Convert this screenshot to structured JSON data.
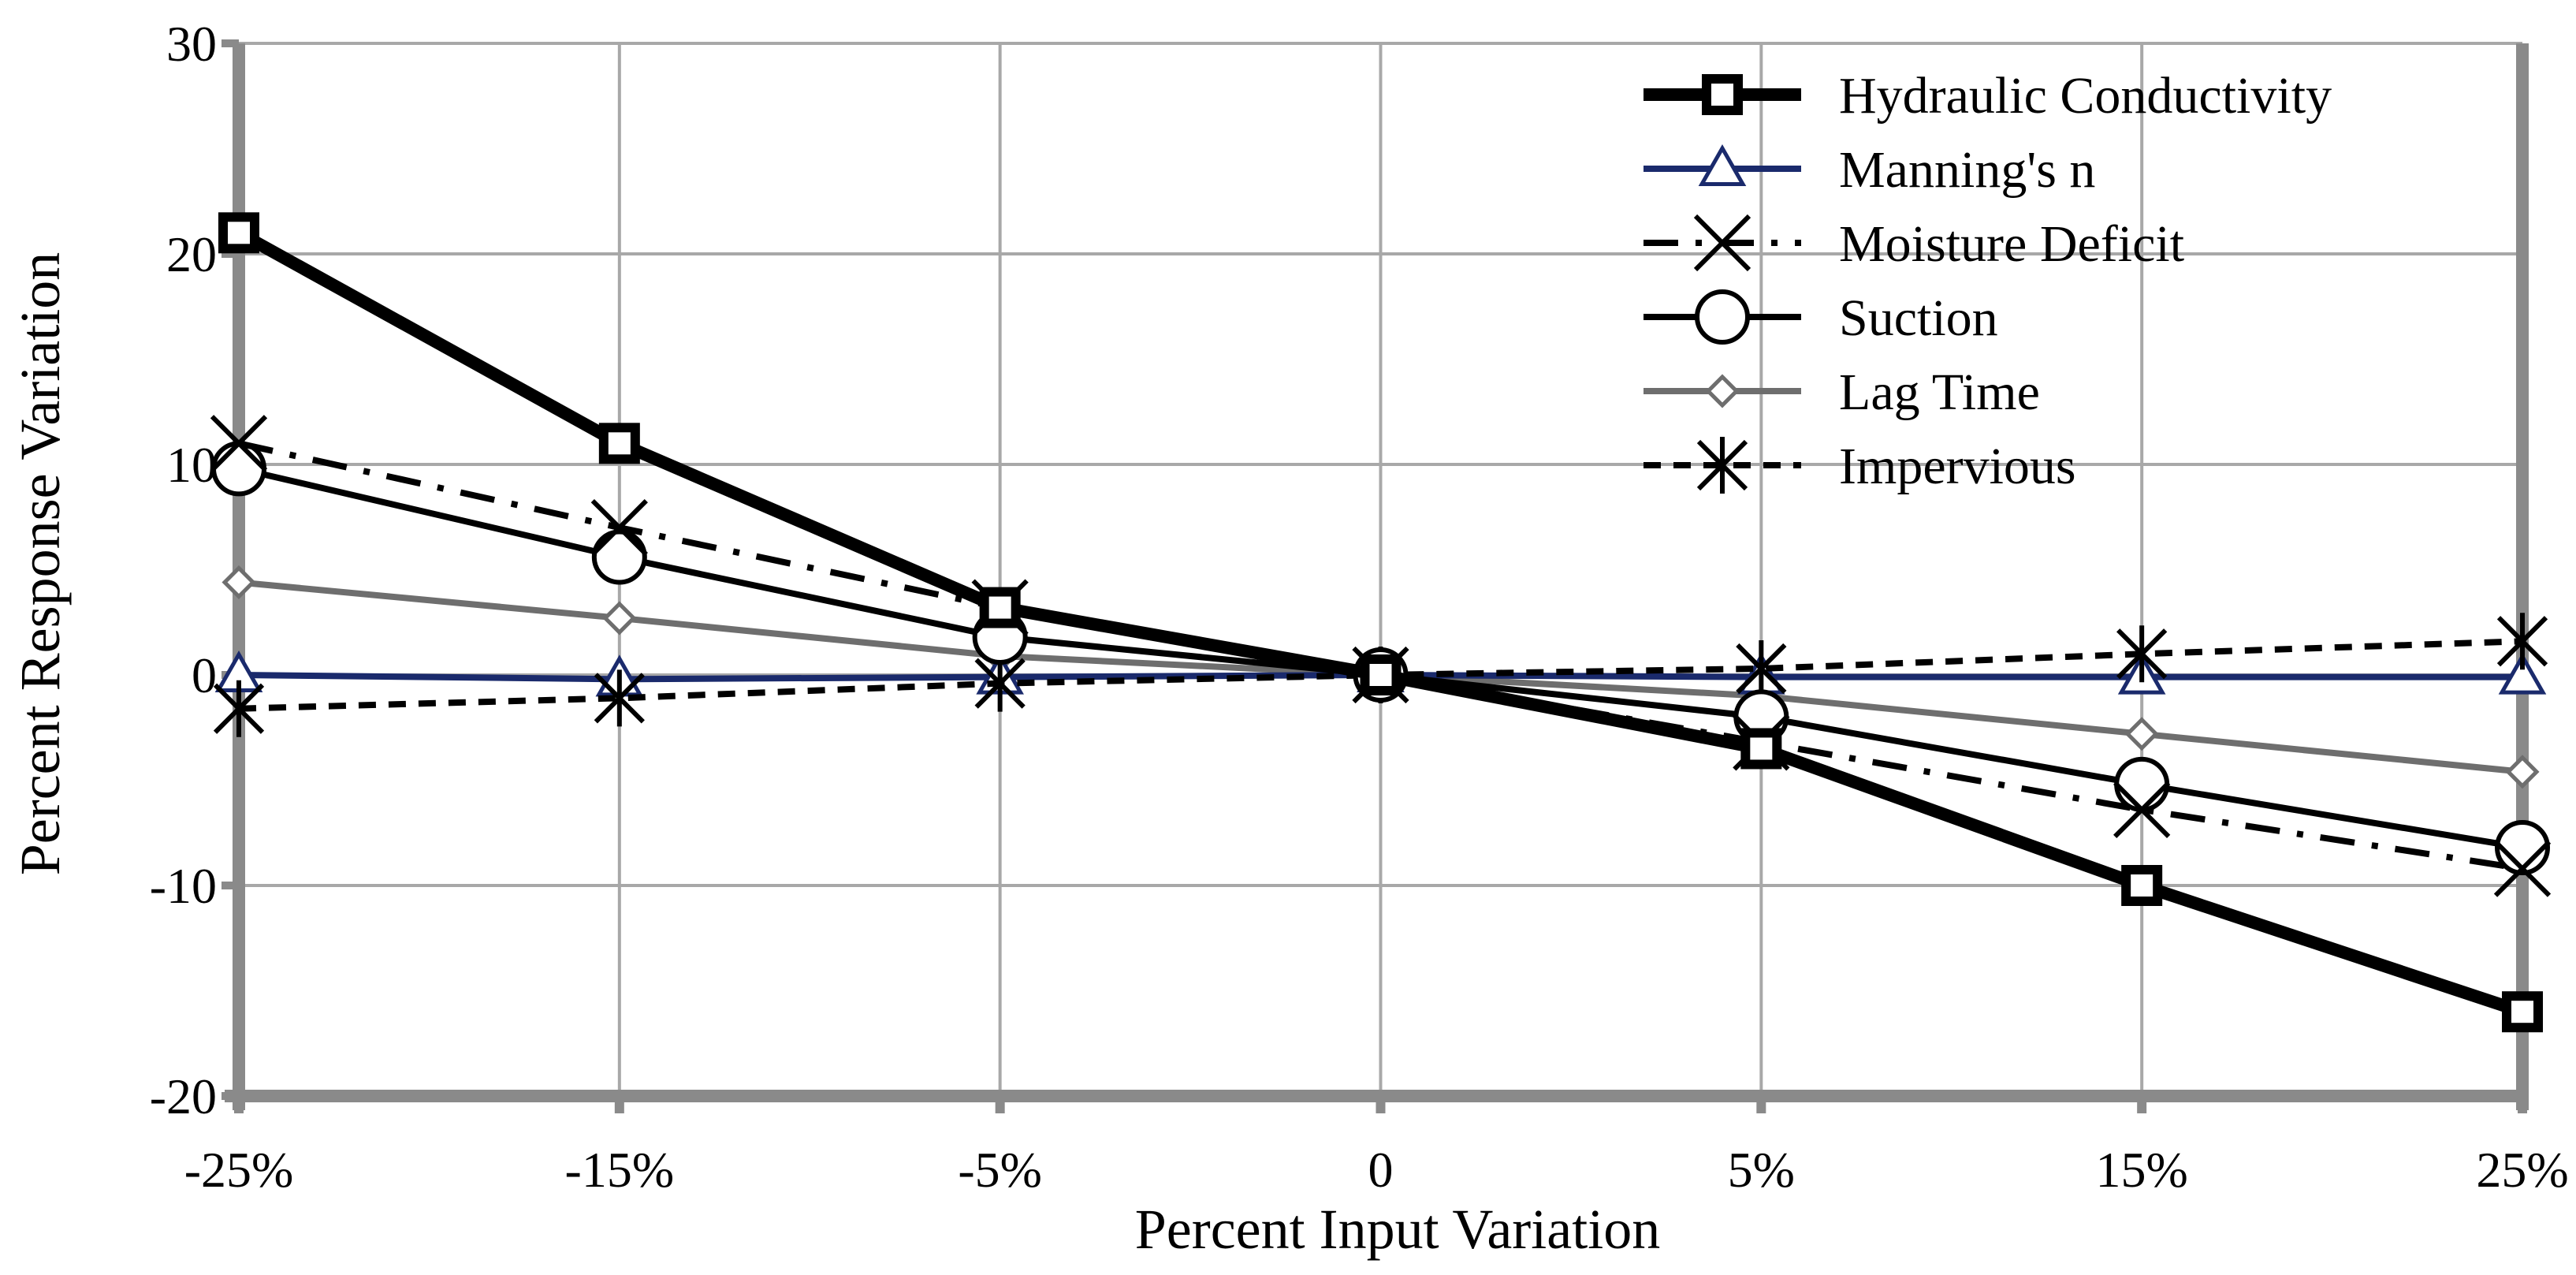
{
  "chart_data": {
    "type": "line",
    "title": "",
    "xlabel": "Percent Input Variation",
    "ylabel": "Percent Response Variation",
    "categories": [
      "-25%",
      "-15%",
      "-5%",
      "0",
      "5%",
      "15%",
      "25%"
    ],
    "y_ticks": [
      "30",
      "20",
      "10",
      "0",
      "-10",
      "-20"
    ],
    "y_tick_values": [
      30,
      20,
      10,
      0,
      -10,
      -20
    ],
    "ylim": [
      -20,
      30
    ],
    "grid": true,
    "legend_position": "top-right",
    "series": [
      {
        "name": "Hydraulic Conductivity",
        "values": [
          21,
          11,
          3.2,
          0,
          -3.5,
          -10,
          -16
        ],
        "color": "#000000",
        "marker": "square",
        "dash": "solid",
        "weight": "heavy"
      },
      {
        "name": "Manning's n",
        "values": [
          0,
          -0.2,
          -0.1,
          0,
          -0.1,
          -0.1,
          -0.1
        ],
        "color": "#1a2a6c",
        "marker": "triangle",
        "dash": "solid",
        "weight": "normal"
      },
      {
        "name": "Moisture Deficit",
        "values": [
          11,
          7,
          3.2,
          0,
          -3.2,
          -6.4,
          -9.2
        ],
        "color": "#000000",
        "marker": "x",
        "dash": "dashdot",
        "weight": "normal"
      },
      {
        "name": "Suction",
        "values": [
          9.8,
          5.6,
          1.8,
          0,
          -2,
          -5.2,
          -8.2
        ],
        "color": "#000000",
        "marker": "circle",
        "dash": "solid",
        "weight": "normal"
      },
      {
        "name": "Lag Time",
        "values": [
          4.4,
          2.7,
          0.9,
          0,
          -1,
          -2.8,
          -4.6
        ],
        "color": "#6e6e6e",
        "marker": "diamond",
        "dash": "solid",
        "weight": "normal"
      },
      {
        "name": "Impervious",
        "values": [
          -1.6,
          -1.1,
          -0.4,
          0,
          0.3,
          1,
          1.6
        ],
        "color": "#000000",
        "marker": "star",
        "dash": "dotted",
        "weight": "normal"
      }
    ]
  }
}
